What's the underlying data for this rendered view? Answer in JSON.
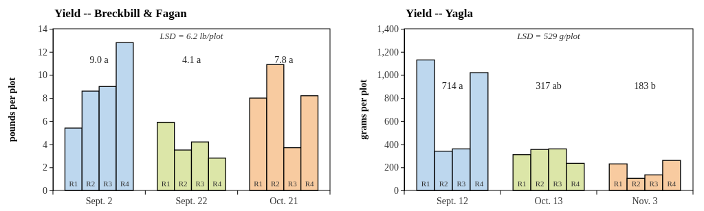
{
  "chart_data": [
    {
      "type": "bar",
      "title": "Yield -- Breckbill & Fagan",
      "ylabel": "pounds per plot",
      "categories": [
        "Sept. 2",
        "Sept. 22",
        "Oct. 21"
      ],
      "series": [
        {
          "name": "R1",
          "colors": [
            "#bdd7ee",
            "#dce6a8",
            "#f8cba0"
          ],
          "values": [
            5.4,
            5.9,
            8.0
          ]
        },
        {
          "name": "R2",
          "colors": [
            "#bdd7ee",
            "#dce6a8",
            "#f8cba0"
          ],
          "values": [
            8.6,
            3.5,
            10.9
          ]
        },
        {
          "name": "R3",
          "colors": [
            "#bdd7ee",
            "#dce6a8",
            "#f8cba0"
          ],
          "values": [
            9.0,
            4.2,
            3.7
          ]
        },
        {
          "name": "R4",
          "colors": [
            "#bdd7ee",
            "#dce6a8",
            "#f8cba0"
          ],
          "values": [
            12.8,
            2.8,
            8.2
          ]
        }
      ],
      "ylim": [
        0,
        14
      ],
      "yticks": [
        0,
        2,
        4,
        6,
        8,
        10,
        12,
        14
      ],
      "grid": false,
      "annotations": [
        "LSD = 6.2 lb/plot",
        "9.0 a",
        "4.1 a",
        "7.8 a"
      ]
    },
    {
      "type": "bar",
      "title": "Yield -- Yagla",
      "ylabel": "grams per plot",
      "categories": [
        "Sept. 12",
        "Oct. 13",
        "Nov. 3"
      ],
      "series": [
        {
          "name": "R1",
          "colors": [
            "#bdd7ee",
            "#dce6a8",
            "#f8cba0"
          ],
          "values": [
            1130,
            310,
            230
          ]
        },
        {
          "name": "R2",
          "colors": [
            "#bdd7ee",
            "#dce6a8",
            "#f8cba0"
          ],
          "values": [
            340,
            355,
            105
          ]
        },
        {
          "name": "R3",
          "colors": [
            "#bdd7ee",
            "#dce6a8",
            "#f8cba0"
          ],
          "values": [
            360,
            360,
            135
          ]
        },
        {
          "name": "R4",
          "colors": [
            "#bdd7ee",
            "#dce6a8",
            "#f8cba0"
          ],
          "values": [
            1020,
            235,
            260
          ]
        }
      ],
      "ylim": [
        0,
        1400
      ],
      "yticks": [
        0,
        200,
        400,
        600,
        800,
        {
          "value": 1000,
          "label": "1,000"
        },
        {
          "value": 1200,
          "label": "1,200"
        },
        {
          "value": 1400,
          "label": "1,400"
        }
      ],
      "grid": false,
      "annotations": [
        "LSD = 529 g/plot",
        "714 a",
        "317 ab",
        "183 b"
      ]
    }
  ]
}
